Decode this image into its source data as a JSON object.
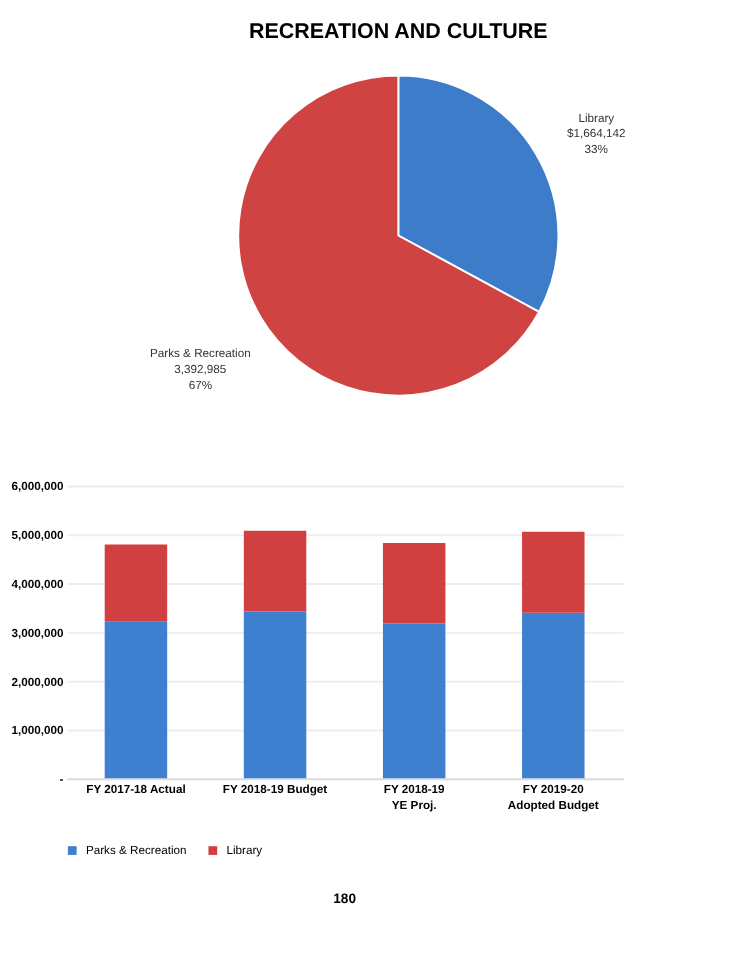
{
  "chart_data": [
    {
      "type": "pie",
      "title": "RECREATION AND CULTURE",
      "categories": [
        "Library",
        "Parks & Recreation"
      ],
      "values": [
        1664142,
        3392985
      ],
      "colors": [
        "#3d7cc9",
        "#cf4342"
      ],
      "value_labels": [
        "$1,664,142\n33%",
        "3,392,985\n67%"
      ],
      "legend": false
    },
    {
      "type": "bar",
      "stacked": true,
      "categories": [
        "FY 2017-18 Actual",
        "FY 2018-19 Budget",
        "FY 2018-19\nYE Proj.",
        "FY 2019-20\nAdopted Budget"
      ],
      "series": [
        {
          "name": "Parks & Recreation",
          "color": "#3f7fcf",
          "values": [
            3210000,
            3420000,
            3170000,
            3390000
          ]
        },
        {
          "name": "Library",
          "color": "#d04040",
          "values": [
            1580000,
            1650000,
            1650000,
            1660000
          ]
        }
      ],
      "ylim": [
        0,
        6000000
      ],
      "yticks": [
        {
          "value": 0,
          "label": "-"
        },
        {
          "value": 1000000,
          "label": "1,000,000"
        },
        {
          "value": 2000000,
          "label": "2,000,000"
        },
        {
          "value": 3000000,
          "label": "3,000,000"
        },
        {
          "value": 4000000,
          "label": "4,000,000"
        },
        {
          "value": 5000000,
          "label": "5,000,000"
        },
        {
          "value": 6000000,
          "label": "6,000,000"
        }
      ],
      "grid": "y",
      "legend": "bottom",
      "annotations": [
        "180"
      ]
    }
  ]
}
